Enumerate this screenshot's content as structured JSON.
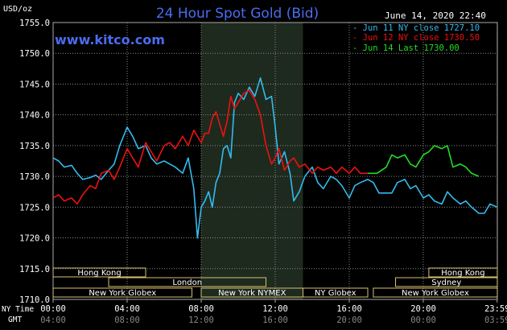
{
  "chart_data": {
    "type": "line",
    "title": "24 Hour Spot Gold (Bid)",
    "watermark": "www.kitco.com",
    "timestamp": "June 14, 2020 22:40",
    "yunit": "USD/oz",
    "ylim": [
      1710,
      1755
    ],
    "yticks": [
      "1755.0",
      "1750.0",
      "1745.0",
      "1740.0",
      "1735.0",
      "1730.0",
      "1725.0",
      "1720.0",
      "1715.0",
      "1710.0"
    ],
    "xlim": [
      0,
      24
    ],
    "xticks_ny": [
      "00:00",
      "04:00",
      "08:00",
      "12:00",
      "16:00",
      "20:00",
      "23:59"
    ],
    "xticks_gmt": [
      "04:00",
      "08:00",
      "12:00",
      "16:00",
      "20:00",
      "00:00",
      "03:59"
    ],
    "row_label_ny": "NY Time",
    "row_label_gmt": "GMT",
    "grid": true,
    "legend": [
      {
        "label": "- Jun 11 NY close 1727.10",
        "color": "#33bbee"
      },
      {
        "label": "- Jun 12 NY close 1730.50",
        "color": "#ee1111"
      },
      {
        "label": "- Jun 14 Last 1730.00",
        "color": "#22dd22"
      }
    ],
    "highlight": {
      "x_start": 8,
      "x_end": 13.5,
      "color": "#1e2a1e"
    },
    "sessions": [
      {
        "label": "Hong Kong",
        "x_start": 0,
        "x_end": 5
      },
      {
        "label": "London",
        "x_start": 3,
        "x_end": 11.5
      },
      {
        "label": "New York Globex",
        "x_start": 0,
        "x_end": 7.5
      },
      {
        "label": "New York NYMEX",
        "x_start": 8,
        "x_end": 13.5
      },
      {
        "label": "NY Globex",
        "x_start": 13.5,
        "x_end": 17
      },
      {
        "label": "Hong Kong",
        "x_start": 20.3,
        "x_end": 24
      },
      {
        "label": "Sydney",
        "x_start": 18.5,
        "x_end": 24
      },
      {
        "label": "New York Globex",
        "x_start": 17.3,
        "x_end": 24
      }
    ],
    "series": [
      {
        "name": "Jun 11",
        "color": "#33bbee",
        "x": [
          0,
          0.3,
          0.6,
          1.0,
          1.3,
          1.6,
          2.0,
          2.3,
          2.6,
          3.0,
          3.3,
          3.6,
          4.0,
          4.3,
          4.6,
          5.0,
          5.3,
          5.6,
          6.0,
          6.3,
          6.6,
          7.0,
          7.3,
          7.6,
          7.8,
          8.0,
          8.2,
          8.4,
          8.6,
          8.8,
          9.0,
          9.2,
          9.4,
          9.6,
          9.8,
          10.0,
          10.3,
          10.6,
          10.9,
          11.2,
          11.5,
          11.8,
          12.0,
          12.2,
          12.5,
          12.8,
          13.0,
          13.3,
          13.6,
          14.0,
          14.3,
          14.6,
          15.0,
          15.3,
          15.6,
          16.0,
          16.3,
          16.6,
          17.0,
          17.3,
          17.6,
          18.0,
          18.3,
          18.6,
          19.0,
          19.3,
          19.6,
          20.0,
          20.3,
          20.6,
          21.0,
          21.3,
          21.6,
          22.0,
          22.3,
          22.6,
          23.0,
          23.3,
          23.6,
          23.99
        ],
        "values": [
          1733.0,
          1732.5,
          1731.5,
          1731.8,
          1730.5,
          1729.5,
          1729.8,
          1730.2,
          1729.5,
          1731.0,
          1732.0,
          1735.0,
          1738.0,
          1736.5,
          1734.5,
          1735.0,
          1733.0,
          1732.0,
          1732.5,
          1732.0,
          1731.5,
          1730.5,
          1733.0,
          1728.0,
          1720.0,
          1725.0,
          1726.0,
          1727.5,
          1725.0,
          1729.0,
          1730.5,
          1734.5,
          1735.0,
          1733.0,
          1742.0,
          1743.5,
          1742.5,
          1744.5,
          1743.0,
          1746.0,
          1742.5,
          1743.0,
          1738.0,
          1732.0,
          1734.0,
          1730.5,
          1726.0,
          1727.5,
          1730.0,
          1731.5,
          1729.0,
          1728.0,
          1730.0,
          1729.5,
          1728.5,
          1726.5,
          1728.5,
          1729.0,
          1729.5,
          1729.0,
          1727.3,
          1727.3,
          1727.3,
          1729.0,
          1729.5,
          1728.0,
          1728.5,
          1726.5,
          1727.0,
          1726.0,
          1725.5,
          1727.5,
          1726.5,
          1725.5,
          1726.0,
          1725.0,
          1724.0,
          1724.0,
          1725.5,
          1725.0
        ]
      },
      {
        "name": "Jun 12",
        "color": "#ee1111",
        "x": [
          0,
          0.3,
          0.6,
          1.0,
          1.3,
          1.6,
          2.0,
          2.3,
          2.6,
          3.0,
          3.3,
          3.6,
          4.0,
          4.3,
          4.6,
          5.0,
          5.3,
          5.6,
          6.0,
          6.3,
          6.6,
          7.0,
          7.3,
          7.6,
          8.0,
          8.2,
          8.4,
          8.6,
          8.8,
          9.0,
          9.2,
          9.4,
          9.6,
          9.8,
          10.0,
          10.3,
          10.6,
          10.9,
          11.2,
          11.5,
          11.8,
          12.0,
          12.2,
          12.5,
          12.8,
          13.0,
          13.3,
          13.6,
          14.0,
          14.3,
          14.6,
          15.0,
          15.3,
          15.6,
          16.0,
          16.3,
          16.6,
          17.0
        ],
        "values": [
          1726.5,
          1727.0,
          1726.0,
          1726.5,
          1725.5,
          1727.0,
          1728.5,
          1728.0,
          1730.5,
          1731.0,
          1729.5,
          1731.5,
          1734.5,
          1733.0,
          1731.5,
          1735.5,
          1734.0,
          1732.5,
          1735.0,
          1735.5,
          1734.5,
          1736.5,
          1735.0,
          1737.5,
          1735.5,
          1737.0,
          1737.0,
          1739.5,
          1740.5,
          1738.5,
          1736.5,
          1739.0,
          1743.0,
          1741.0,
          1742.0,
          1743.5,
          1744.0,
          1742.5,
          1740.0,
          1735.0,
          1732.0,
          1733.0,
          1734.5,
          1731.0,
          1732.5,
          1733.0,
          1731.5,
          1732.0,
          1730.5,
          1731.5,
          1731.0,
          1731.5,
          1730.5,
          1731.5,
          1730.5,
          1731.5,
          1730.5,
          1730.5
        ]
      },
      {
        "name": "Jun 14",
        "color": "#22dd22",
        "x": [
          17.0,
          17.5,
          18.0,
          18.3,
          18.6,
          19.0,
          19.3,
          19.6,
          20.0,
          20.3,
          20.6,
          21.0,
          21.3,
          21.6,
          22.0,
          22.3,
          22.6,
          23.0
        ],
        "values": [
          1730.5,
          1730.5,
          1731.5,
          1733.5,
          1733.0,
          1733.5,
          1732.0,
          1731.5,
          1733.5,
          1734.0,
          1735.0,
          1734.5,
          1735.0,
          1731.5,
          1732.0,
          1731.5,
          1730.5,
          1730.0
        ]
      }
    ]
  }
}
